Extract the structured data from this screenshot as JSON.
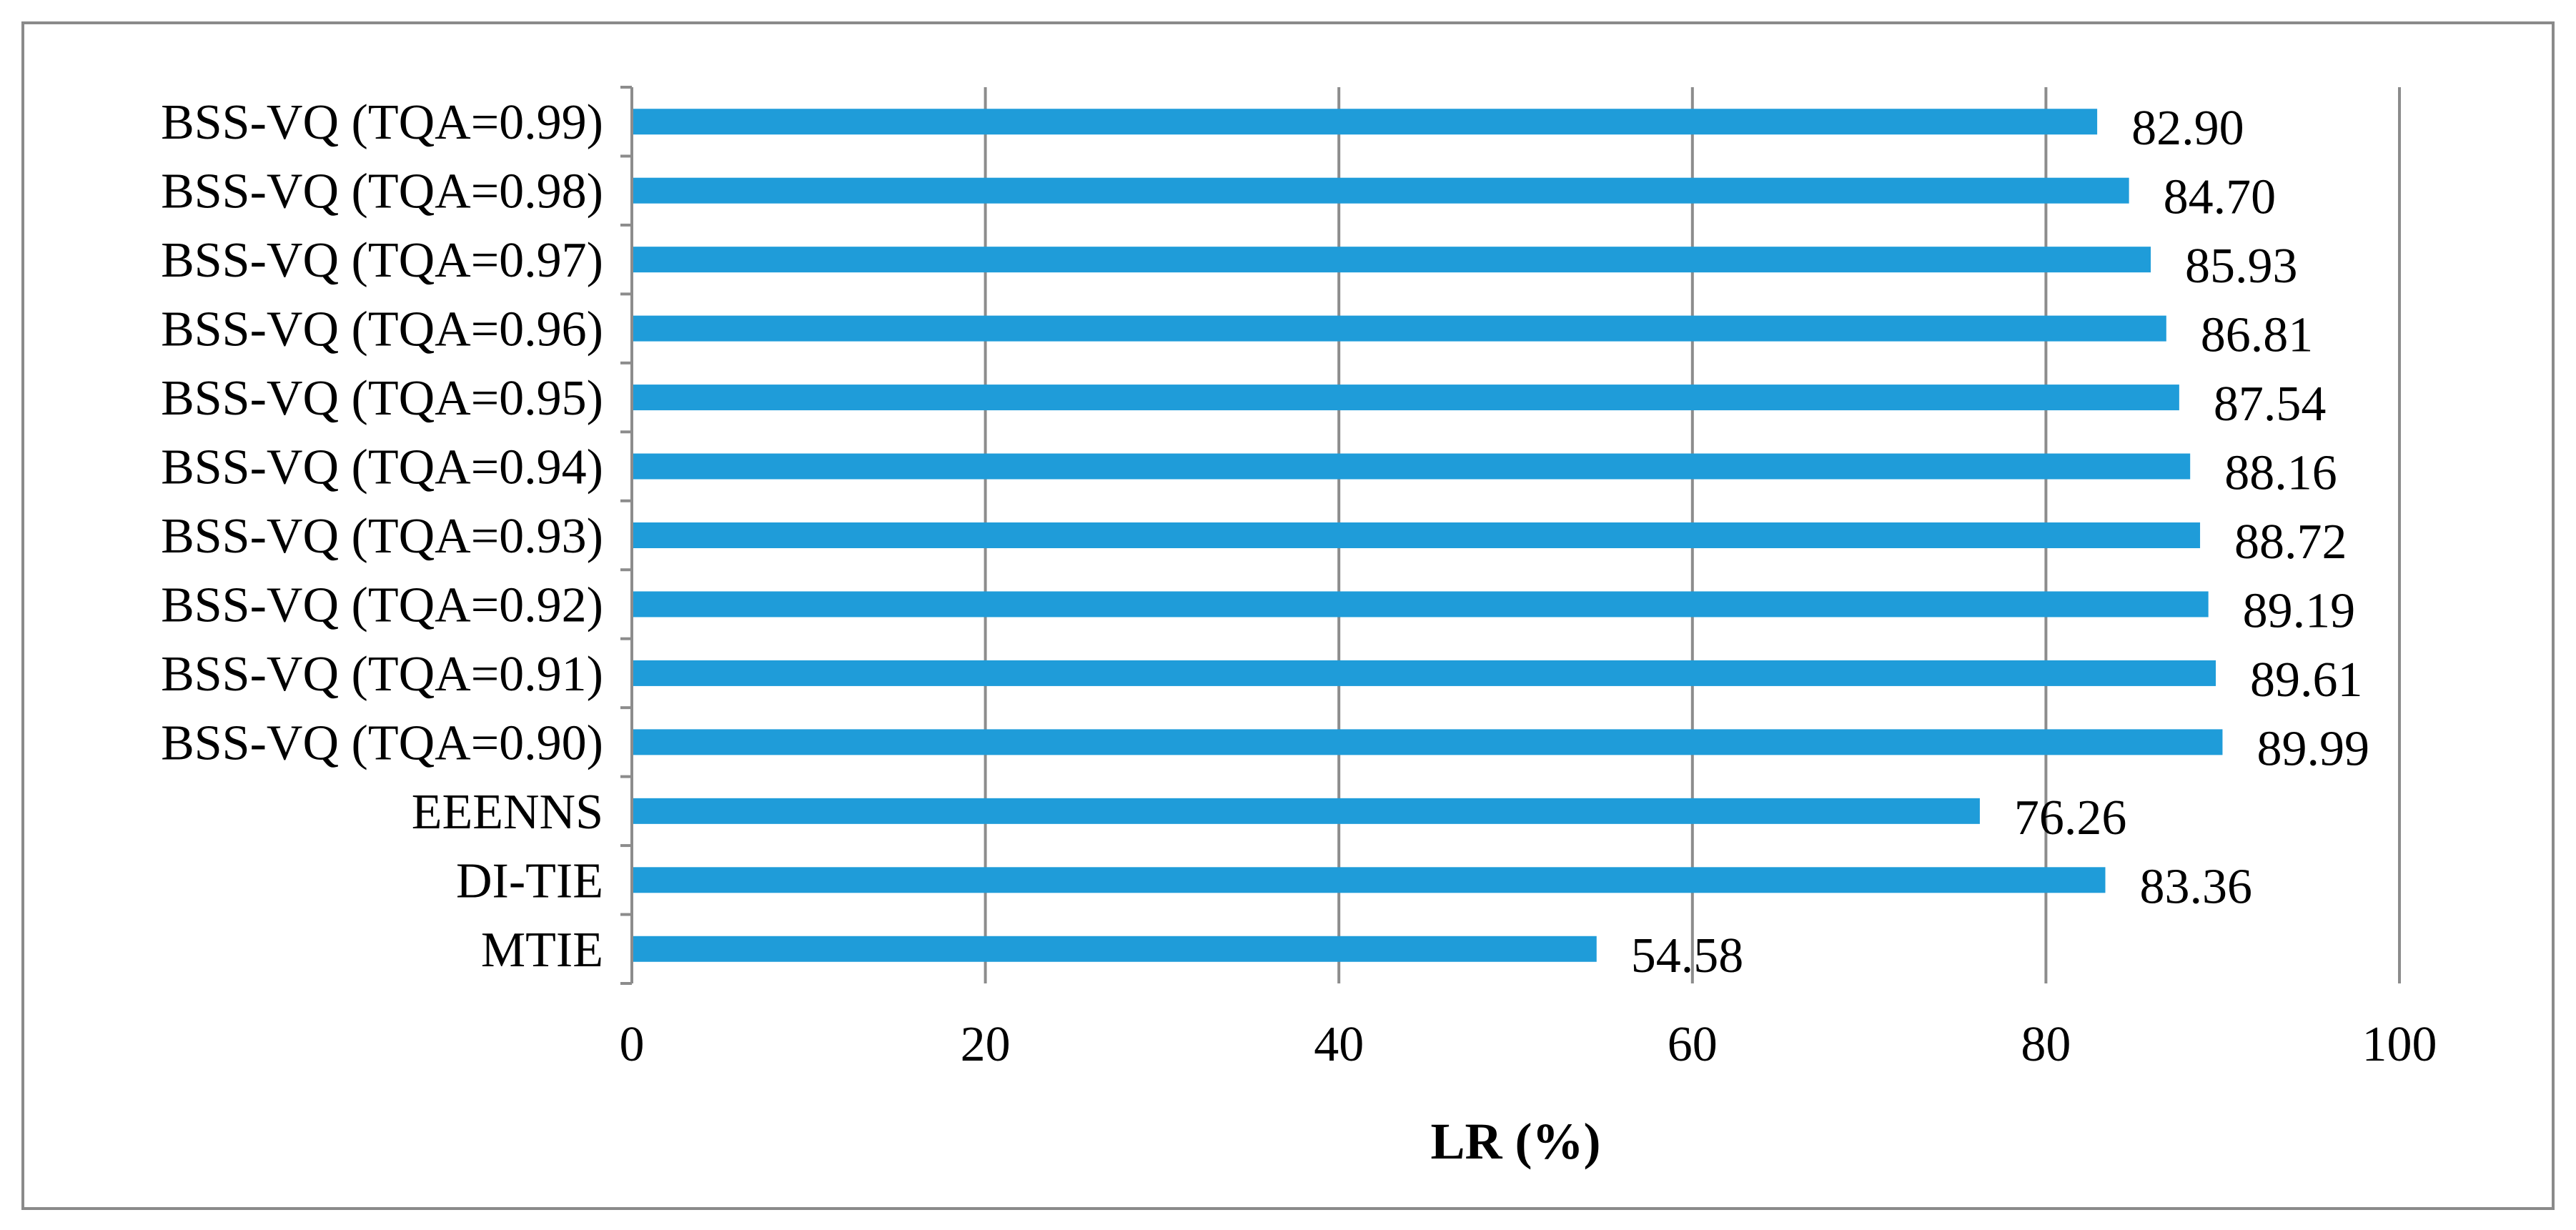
{
  "chart_data": {
    "type": "bar",
    "orientation": "horizontal",
    "categories": [
      "BSS-VQ (TQA=0.99)",
      "BSS-VQ (TQA=0.98)",
      "BSS-VQ (TQA=0.97)",
      "BSS-VQ (TQA=0.96)",
      "BSS-VQ (TQA=0.95)",
      "BSS-VQ (TQA=0.94)",
      "BSS-VQ (TQA=0.93)",
      "BSS-VQ (TQA=0.92)",
      "BSS-VQ (TQA=0.91)",
      "BSS-VQ (TQA=0.90)",
      "EEENNS",
      "DI-TIE",
      "MTIE"
    ],
    "values": [
      82.9,
      84.7,
      85.93,
      86.81,
      87.54,
      88.16,
      88.72,
      89.19,
      89.61,
      89.99,
      76.26,
      83.36,
      54.58
    ],
    "data_labels": [
      "82.90",
      "84.70",
      "85.93",
      "86.81",
      "87.54",
      "88.16",
      "88.72",
      "89.19",
      "89.61",
      "89.99",
      "76.26",
      "83.36",
      "54.58"
    ],
    "xlabel": "LR (%)",
    "ylabel": "",
    "title": "",
    "xlim": [
      0,
      100
    ],
    "xticks": [
      "0",
      "20",
      "40",
      "60",
      "80",
      "100"
    ],
    "grid": "vertical",
    "legend": "none",
    "bar_color": "#1f9cd9"
  }
}
